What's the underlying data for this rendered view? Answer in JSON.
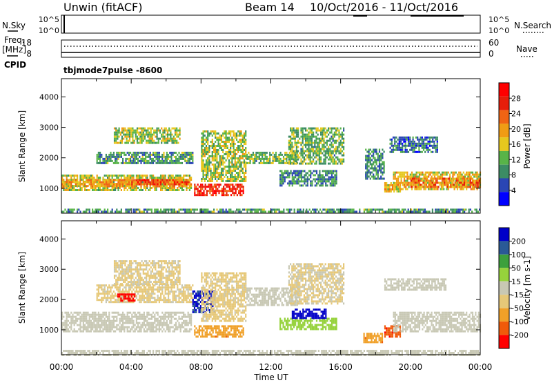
{
  "header": {
    "station": "Unwin (fitACF)",
    "beam": "Beam 14",
    "date_range": "10/Oct/2016 - 11/Oct/2016"
  },
  "top_panels": {
    "nsky_label": "N.Sky",
    "nsky_ticks": [
      "10^5",
      "10^0"
    ],
    "nsearch_label": "N.Search",
    "nsearch_ticks": [
      "10^5",
      "10^0"
    ],
    "freq_label": "Freq.",
    "freq_unit": "[MHz]",
    "freq_ticks": [
      "18",
      "8"
    ],
    "nave_label": "Nave",
    "nave_ticks": [
      "60",
      "0"
    ],
    "cpid_label": "CPID",
    "cpid_value": "tbjmode7pulse -8600"
  },
  "colors": {
    "power_scale": [
      "#0000ff",
      "#2a46b4",
      "#3c8c64",
      "#58b448",
      "#e6c81e",
      "#f09c14",
      "#f06414",
      "#e61e0a",
      "#ff0000"
    ],
    "velocity_scale": [
      "#ff0000",
      "#f05a0a",
      "#f0a028",
      "#e6c878",
      "#c8c8b4",
      "#96d23c",
      "#3ca03c",
      "#2a5a96",
      "#0000c8"
    ]
  },
  "chart_data": [
    {
      "type": "heatmap",
      "panel": "power",
      "ylabel": "Slant Range [km]",
      "xlabel": "",
      "ylim": [
        180,
        4600
      ],
      "yticks": [
        "1000",
        "2000",
        "3000",
        "4000"
      ],
      "xlim_hours": [
        0,
        24
      ],
      "colorbar_label": "Power [dB]",
      "colorbar_ticks": [
        "4",
        "8",
        "12",
        "16",
        "20",
        "24",
        "28"
      ],
      "colorbar_range": [
        0,
        32
      ],
      "regions": [
        {
          "t0": 0,
          "t1": 7.4,
          "r0": 950,
          "r1": 1450,
          "v": 15
        },
        {
          "t0": 0,
          "t1": 7.4,
          "r0": 1050,
          "r1": 1300,
          "v": 20
        },
        {
          "t0": 4,
          "t1": 7.3,
          "r0": 1100,
          "r1": 1300,
          "v": 25
        },
        {
          "t0": 2,
          "t1": 7.5,
          "r0": 1800,
          "r1": 2200,
          "v": 10
        },
        {
          "t0": 3,
          "t1": 6.8,
          "r0": 2500,
          "r1": 3000,
          "v": 14
        },
        {
          "t0": 7.6,
          "t1": 10.4,
          "r0": 800,
          "r1": 1150,
          "v": 27
        },
        {
          "t0": 8,
          "t1": 10.6,
          "r0": 1250,
          "r1": 2900,
          "v": 14
        },
        {
          "t0": 10.6,
          "t1": 13.5,
          "r0": 1850,
          "r1": 2200,
          "v": 12
        },
        {
          "t0": 12.5,
          "t1": 15.8,
          "r0": 1100,
          "r1": 1600,
          "v": 9
        },
        {
          "t0": 13,
          "t1": 16.2,
          "r0": 1800,
          "r1": 3000,
          "v": 12
        },
        {
          "t0": 17.4,
          "t1": 18.5,
          "r0": 1300,
          "r1": 2300,
          "v": 9
        },
        {
          "t0": 18.5,
          "t1": 19.4,
          "r0": 900,
          "r1": 1200,
          "v": 18
        },
        {
          "t0": 19,
          "t1": 24,
          "r0": 950,
          "r1": 1550,
          "v": 17
        },
        {
          "t0": 20,
          "t1": 24,
          "r0": 1050,
          "r1": 1350,
          "v": 22
        },
        {
          "t0": 18.8,
          "t1": 21.5,
          "r0": 2200,
          "r1": 2700,
          "v": 7
        },
        {
          "t0": 0,
          "t1": 24,
          "r0": 200,
          "r1": 330,
          "v": 10
        }
      ]
    },
    {
      "type": "heatmap",
      "panel": "velocity",
      "ylabel": "Slant Range [km]",
      "xlabel": "Time UT",
      "ylim": [
        180,
        4600
      ],
      "yticks": [
        "1000",
        "2000",
        "3000",
        "4000"
      ],
      "xticks": [
        "00:00",
        "04:00",
        "08:00",
        "12:00",
        "16:00",
        "20:00",
        "00:00"
      ],
      "xlim_hours": [
        0,
        24
      ],
      "colorbar_label": "Velocity [m s-1]",
      "colorbar_ticks": [
        "200",
        "100",
        "50",
        "15",
        "-15",
        "-50",
        "-100",
        "-200"
      ],
      "colorbar_range": [
        -250,
        250
      ],
      "regions": [
        {
          "t0": 0,
          "t1": 7.4,
          "r0": 950,
          "r1": 1600,
          "v": 0
        },
        {
          "t0": 2,
          "t1": 7.5,
          "r0": 1950,
          "r1": 2500,
          "v": -40
        },
        {
          "t0": 3.2,
          "t1": 4.2,
          "r0": 1950,
          "r1": 2200,
          "v": -220
        },
        {
          "t0": 3,
          "t1": 6.8,
          "r0": 2500,
          "r1": 3300,
          "v": -35
        },
        {
          "t0": 7.5,
          "t1": 8.8,
          "r0": 1600,
          "r1": 2300,
          "v": 200
        },
        {
          "t0": 7.6,
          "t1": 10.4,
          "r0": 800,
          "r1": 1150,
          "v": -120
        },
        {
          "t0": 8,
          "t1": 10.6,
          "r0": 1300,
          "r1": 2900,
          "v": -40
        },
        {
          "t0": 10.6,
          "t1": 13.5,
          "r0": 1850,
          "r1": 2400,
          "v": 0
        },
        {
          "t0": 12.5,
          "t1": 15.8,
          "r0": 1050,
          "r1": 1400,
          "v": 60
        },
        {
          "t0": 13.2,
          "t1": 15.2,
          "r0": 1400,
          "r1": 1700,
          "v": 220
        },
        {
          "t0": 13,
          "t1": 16.2,
          "r0": 1900,
          "r1": 3200,
          "v": -30
        },
        {
          "t0": 17.3,
          "t1": 18.4,
          "r0": 600,
          "r1": 900,
          "v": -120
        },
        {
          "t0": 18.5,
          "t1": 19.4,
          "r0": 800,
          "r1": 1150,
          "v": -180
        },
        {
          "t0": 19,
          "t1": 24,
          "r0": 950,
          "r1": 1600,
          "v": 0
        },
        {
          "t0": 18.5,
          "t1": 22,
          "r0": 2300,
          "r1": 2700,
          "v": 0
        },
        {
          "t0": 0,
          "t1": 24,
          "r0": 200,
          "r1": 340,
          "v": 0
        }
      ]
    }
  ]
}
